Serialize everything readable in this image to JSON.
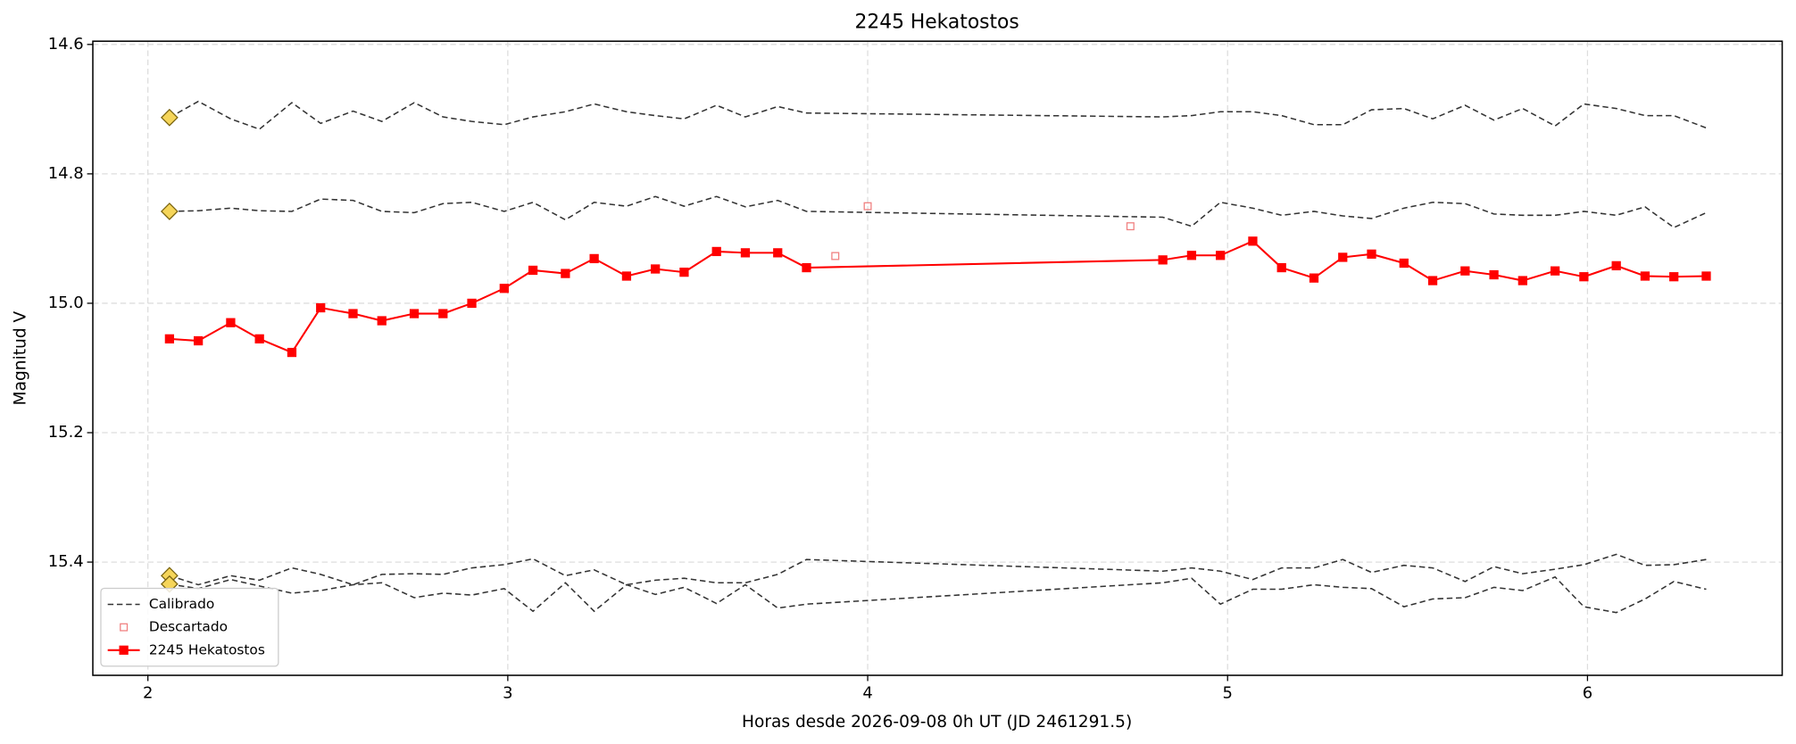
{
  "chart_data": {
    "type": "line",
    "title": "2245 Hekatostos",
    "xlabel": "Horas desde 2026-09-08 0h UT (JD 2461291.5)",
    "ylabel": "Magnitud V",
    "xlim": [
      1.847,
      6.541
    ],
    "xticks": [
      2,
      3,
      4,
      5,
      6
    ],
    "ylim": [
      15.575,
      14.595
    ],
    "yticks": [
      14.6,
      14.8,
      {
        "value": 15,
        "label": "15.0"
      },
      15.2,
      15.4
    ],
    "grid": true,
    "legend": "lower left",
    "x": [
      2.06,
      2.14,
      2.23,
      2.31,
      2.4,
      2.48,
      2.57,
      2.65,
      2.74,
      2.82,
      2.9,
      2.99,
      3.07,
      3.16,
      3.24,
      3.33,
      3.41,
      3.49,
      3.58,
      3.66,
      3.75,
      3.83,
      4.82,
      4.9,
      4.98,
      5.07,
      5.15,
      5.24,
      5.32,
      5.4,
      5.49,
      5.57,
      5.66,
      5.74,
      5.82,
      5.91,
      5.99,
      6.08,
      6.16,
      6.24,
      6.33
    ],
    "calibrated": {
      "name": "Calibrado",
      "color": "#333333",
      "marker_color": "#f5d55a",
      "lines": [
        [
          14.713,
          14.688,
          14.715,
          14.731,
          14.69,
          14.722,
          14.703,
          14.719,
          14.69,
          14.712,
          14.719,
          14.724,
          14.712,
          14.704,
          14.692,
          14.704,
          14.71,
          14.715,
          14.694,
          14.712,
          14.696,
          14.706,
          14.712,
          14.71,
          14.704,
          14.704,
          14.71,
          14.724,
          14.724,
          14.701,
          14.699,
          14.715,
          14.694,
          14.717,
          14.699,
          14.726,
          14.692,
          14.699,
          14.71,
          14.71,
          14.729
        ],
        [
          14.858,
          14.857,
          14.853,
          14.857,
          14.858,
          14.839,
          14.841,
          14.858,
          14.86,
          14.846,
          14.844,
          14.858,
          14.844,
          14.871,
          14.844,
          14.85,
          14.835,
          14.85,
          14.835,
          14.851,
          14.841,
          14.858,
          14.867,
          14.881,
          14.844,
          14.853,
          14.864,
          14.858,
          14.865,
          14.869,
          14.853,
          14.844,
          14.846,
          14.862,
          14.864,
          14.864,
          14.858,
          14.864,
          14.851,
          14.883,
          14.86
        ],
        [
          15.421,
          15.435,
          15.421,
          15.428,
          15.409,
          15.419,
          15.435,
          15.419,
          15.418,
          15.419,
          15.409,
          15.404,
          15.395,
          15.421,
          15.412,
          15.435,
          15.428,
          15.425,
          15.432,
          15.432,
          15.419,
          15.396,
          15.414,
          15.409,
          15.414,
          15.427,
          15.409,
          15.409,
          15.396,
          15.416,
          15.405,
          15.409,
          15.43,
          15.407,
          15.418,
          15.411,
          15.404,
          15.388,
          15.405,
          15.404,
          15.396
        ],
        [
          15.434,
          15.441,
          15.427,
          15.437,
          15.448,
          15.444,
          15.435,
          15.432,
          15.455,
          15.448,
          15.451,
          15.441,
          15.476,
          15.432,
          15.476,
          15.435,
          15.45,
          15.439,
          15.464,
          15.435,
          15.471,
          15.465,
          15.432,
          15.425,
          15.465,
          15.442,
          15.442,
          15.435,
          15.439,
          15.441,
          15.469,
          15.457,
          15.455,
          15.439,
          15.444,
          15.423,
          15.469,
          15.478,
          15.457,
          15.43,
          15.442
        ]
      ]
    },
    "discarded": {
      "name": "Descartado",
      "color": "#f08080",
      "x": [
        3.91,
        4.0,
        4.73
      ],
      "values": [
        14.927,
        14.85,
        14.881
      ]
    },
    "series": [
      {
        "name": "2245 Hekatostos",
        "color": "#ff0000",
        "values": [
          15.055,
          15.058,
          15.03,
          15.055,
          15.076,
          15.007,
          15.016,
          15.027,
          15.016,
          15.016,
          15.0,
          14.977,
          14.949,
          14.954,
          14.931,
          14.958,
          14.947,
          14.952,
          14.92,
          14.922,
          14.922,
          14.945,
          14.933,
          14.926,
          14.926,
          14.904,
          14.945,
          14.961,
          14.929,
          14.924,
          14.938,
          14.965,
          14.95,
          14.956,
          14.965,
          14.95,
          14.959,
          14.942,
          14.958,
          14.959,
          14.958
        ]
      }
    ]
  }
}
